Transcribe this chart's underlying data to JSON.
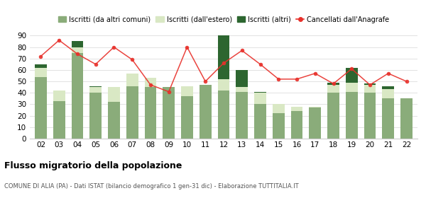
{
  "years": [
    "02",
    "03",
    "04",
    "05",
    "06",
    "07",
    "08",
    "09",
    "10",
    "11",
    "12",
    "13",
    "14",
    "15",
    "16",
    "17",
    "18",
    "19",
    "20",
    "21",
    "22"
  ],
  "iscritti_altri_comuni": [
    54,
    33,
    75,
    40,
    32,
    46,
    45,
    45,
    37,
    47,
    42,
    41,
    30,
    22,
    24,
    27,
    40,
    41,
    40,
    35,
    35
  ],
  "iscritti_estero": [
    8,
    9,
    5,
    5,
    13,
    11,
    8,
    0,
    9,
    0,
    10,
    4,
    10,
    8,
    4,
    1,
    7,
    8,
    7,
    8,
    0
  ],
  "iscritti_altri": [
    3,
    0,
    5,
    1,
    0,
    0,
    0,
    0,
    0,
    0,
    38,
    15,
    1,
    0,
    0,
    0,
    2,
    13,
    1,
    3,
    0
  ],
  "cancellati": [
    72,
    86,
    74,
    65,
    80,
    69,
    47,
    41,
    80,
    50,
    66,
    77,
    65,
    52,
    52,
    57,
    48,
    61,
    47,
    57,
    50
  ],
  "color_altri_comuni": "#8aac7a",
  "color_estero": "#d9e8c4",
  "color_altri": "#2d6630",
  "color_cancellati": "#e8302a",
  "title": "Flusso migratorio della popolazione",
  "subtitle": "COMUNE DI ALIA (PA) - Dati ISTAT (bilancio demografico 1 gen-31 dic) - Elaborazione TUTTITALIA.IT",
  "legend_labels": [
    "Iscritti (da altri comuni)",
    "Iscritti (dall'estero)",
    "Iscritti (altri)",
    "Cancellati dall'Anagrafe"
  ],
  "ylim": [
    0,
    90
  ],
  "yticks": [
    0,
    10,
    20,
    30,
    40,
    50,
    60,
    70,
    80,
    90
  ]
}
